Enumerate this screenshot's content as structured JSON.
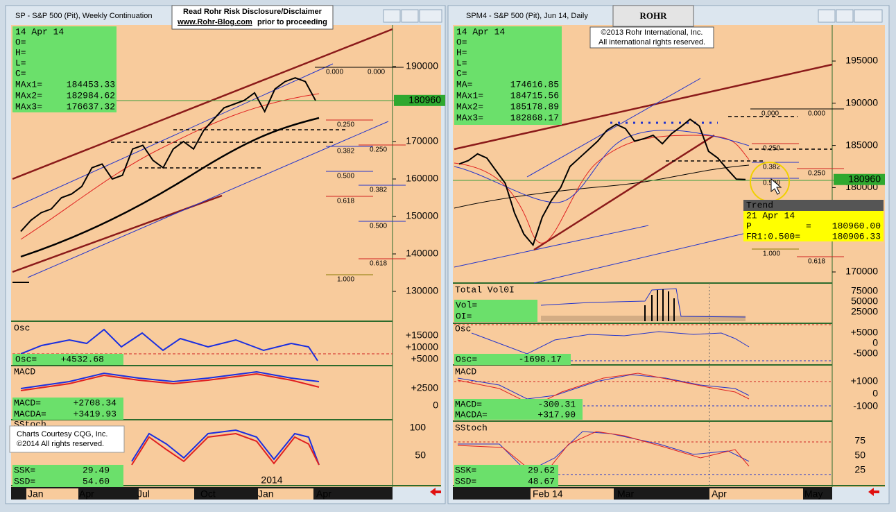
{
  "left": {
    "title": "SP - S&P 500 (Pit), Weekly Continuation",
    "info": {
      "date": "14 Apr 14",
      "blank_rows": [
        "O=",
        "H=",
        "L=",
        "C="
      ],
      "rows": [
        {
          "label": "MAx1=",
          "value": "184453.33"
        },
        {
          "label": "MAx2=",
          "value": "182984.62"
        },
        {
          "label": "MAx3=",
          "value": "176637.32"
        }
      ]
    },
    "price_ticks": [
      190000,
      170000,
      160000,
      150000,
      140000,
      130000
    ],
    "last_price": 180960,
    "closes": [
      146000,
      149000,
      151000,
      152000,
      155000,
      156000,
      158000,
      163000,
      164000,
      160000,
      161000,
      168000,
      169000,
      165000,
      163000,
      168000,
      170000,
      168000,
      173000,
      176000,
      179000,
      180000,
      181000,
      183000,
      178000,
      184000,
      186000,
      187000,
      186000,
      180960
    ],
    "fib_labels": [
      "0.000",
      "0.000",
      "0.250",
      "0.382",
      "0.250",
      "0.500",
      "0.382",
      "0.618",
      "0.500",
      "0.618",
      "1.000"
    ],
    "osc": {
      "name": "Osc",
      "label": "Osc=",
      "value": "+4532.68",
      "ticks": [
        "+15000",
        "+10000",
        "+5000"
      ]
    },
    "macd": {
      "name": "MACD",
      "rows": [
        {
          "label": "MACD=",
          "value": "+2708.34"
        },
        {
          "label": "MACDA=",
          "value": "+3419.93"
        }
      ],
      "ticks": [
        "+2500",
        "0"
      ]
    },
    "stoch": {
      "name": "SStoch",
      "rows": [
        {
          "label": "SSK=",
          "value": "29.49"
        },
        {
          "label": "SSD=",
          "value": "54.60"
        }
      ],
      "ticks": [
        "100",
        "50"
      ],
      "year": "2014"
    },
    "x_labels": [
      "Jan",
      "Apr",
      "Jul",
      "Oct",
      "Jan",
      "Apr"
    ],
    "credit": [
      "Charts Courtesy CQG, Inc.",
      "©2014 All rights reserved."
    ]
  },
  "disclaimer": {
    "line1": "Read Rohr Risk Disclosure/Disclaimer",
    "link": "www.Rohr-Blog.com",
    "line2": "prior to proceeding"
  },
  "right": {
    "title": "SPM4 - S&P 500 (Pit), Jun 14, Daily",
    "logo": "ROHR",
    "copyright": [
      "©2013 Rohr International, Inc.",
      "All international rights reserved."
    ],
    "info": {
      "date": "14 Apr 14",
      "blank_rows": [
        "O=",
        "H=",
        "L=",
        "C="
      ],
      "rows": [
        {
          "label": "MA=",
          "value": "174616.85"
        },
        {
          "label": "MAx1=",
          "value": "184715.56"
        },
        {
          "label": "MAx2=",
          "value": "185178.89"
        },
        {
          "label": "MAx3=",
          "value": "182868.17"
        }
      ]
    },
    "price_ticks": [
      195000,
      190000,
      185000,
      180000,
      170000
    ],
    "last_price": 180960,
    "closes": [
      182800,
      183200,
      184000,
      183500,
      182000,
      180500,
      177000,
      174500,
      173200,
      176500,
      178500,
      180000,
      182500,
      183500,
      184500,
      185500,
      186800,
      187500,
      187000,
      185500,
      185800,
      186200,
      185200,
      186400,
      187200,
      188100,
      187300,
      184300,
      183500,
      182200,
      181000,
      180960
    ],
    "fib_labels": [
      "0.000",
      "0.000",
      "0.250",
      "0.382",
      "0.250",
      "0.500",
      "1.000",
      "0.618"
    ],
    "tooltip": {
      "header": "Trend",
      "date": "21 Apr 14",
      "p_label": "P",
      "eq": "=",
      "p_value": "180960.00",
      "fr_label": "FR1:0.500=",
      "fr_value": "180906.33"
    },
    "vol": {
      "name": "Total Vol0I",
      "rows": [
        "Vol=",
        "OI="
      ],
      "ticks": [
        "75000",
        "50000",
        "25000"
      ]
    },
    "osc": {
      "name": "Osc",
      "label": "Osc=",
      "value": "-1698.17",
      "ticks": [
        "+5000",
        "0",
        "-5000"
      ]
    },
    "macd": {
      "name": "MACD",
      "rows": [
        {
          "label": "MACD=",
          "value": "-300.31"
        },
        {
          "label": "MACDA=",
          "value": "+317.90"
        }
      ],
      "ticks": [
        "+1000",
        "0",
        "-1000"
      ]
    },
    "stoch": {
      "name": "SStoch",
      "rows": [
        {
          "label": "SSK=",
          "value": "29.62"
        },
        {
          "label": "SSD=",
          "value": "48.67"
        }
      ],
      "ticks": [
        "75",
        "50",
        "25"
      ]
    },
    "x_labels": [
      "Feb 14",
      "Mar",
      "Apr",
      "May"
    ]
  }
}
